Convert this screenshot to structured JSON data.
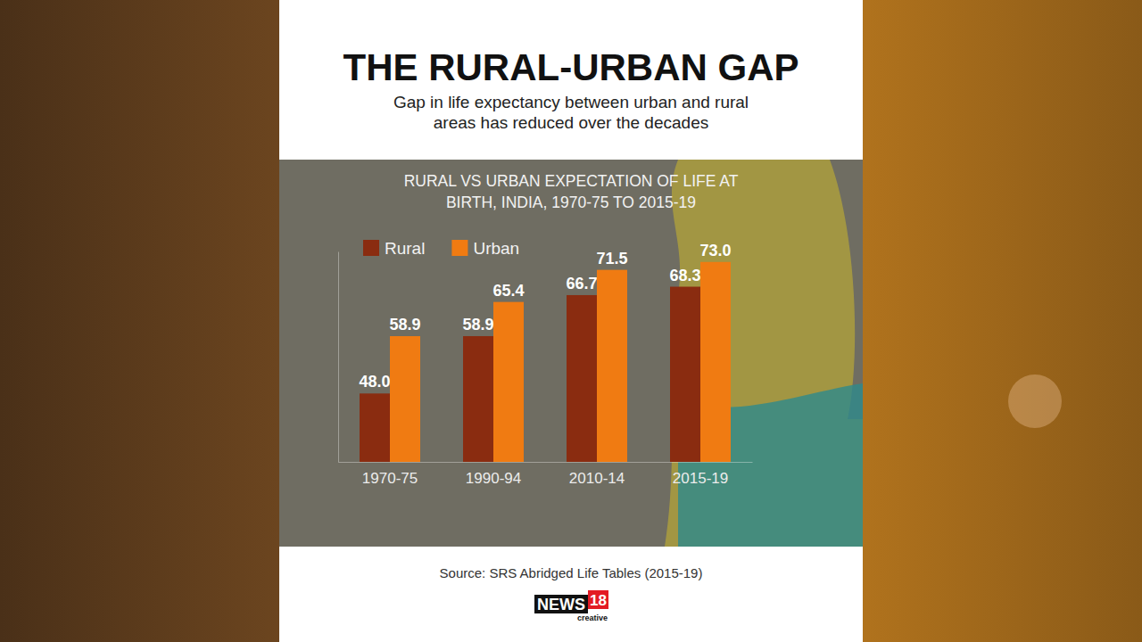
{
  "header": {
    "title": "THE RURAL-URBAN GAP",
    "subtitle": [
      "Gap in life expectancy between urban and rural",
      "areas has reduced over the decades"
    ]
  },
  "chart_data": {
    "type": "bar",
    "title": [
      "RURAL VS URBAN EXPECTATION OF LIFE AT",
      "BIRTH, INDIA, 1970-75 TO 2015-19"
    ],
    "categories": [
      "1970-75",
      "1990-94",
      "2010-14",
      "2015-19"
    ],
    "series": [
      {
        "name": "Rural",
        "color": "#8a2c10",
        "values": [
          48,
          58.9,
          66.7,
          68.3
        ],
        "value_labels": [
          "48.0",
          "58.9",
          "66.7",
          "68.3"
        ]
      },
      {
        "name": "Urban",
        "color": "#f07b12",
        "values": [
          58.9,
          65.4,
          71.5,
          73
        ],
        "value_labels": [
          "58.9",
          "65.4",
          "71.5",
          "73.0"
        ]
      }
    ],
    "ylim": [
      35,
      75
    ],
    "yticks": [],
    "grid": false,
    "legend": "top-left",
    "data_labels": true,
    "tick_labels": "x"
  },
  "footer": {
    "source": "Source: SRS Abridged Life Tables (2015-19)",
    "brand": "NEWS",
    "brand_number": "18",
    "brand_sub": "creative"
  }
}
